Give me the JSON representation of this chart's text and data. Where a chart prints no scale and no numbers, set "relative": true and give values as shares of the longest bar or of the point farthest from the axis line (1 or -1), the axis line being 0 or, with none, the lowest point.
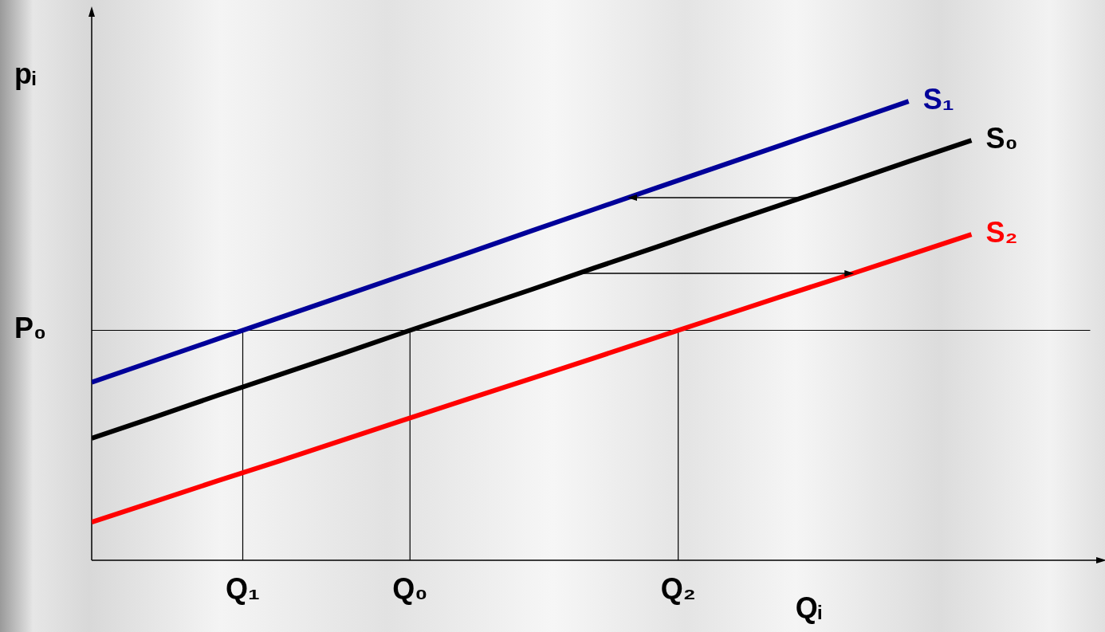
{
  "chart_data": {
    "type": "line",
    "relative": true,
    "xlabel": "Qᵢ",
    "ylabel": "pᵢ",
    "legend": false,
    "marker": "none",
    "line_style": "solid",
    "categories": [
      null,
      null,
      null,
      null,
      null,
      null,
      null,
      null,
      null,
      null,
      null,
      null,
      null,
      null,
      null
    ],
    "series": [
      {
        "name": "S₁",
        "color": "#000099",
        "values": [
          0.388,
          0.435,
          0.482,
          0.529,
          0.576,
          0.623,
          0.67,
          0.718,
          0.765,
          0.812,
          0.859,
          0.906,
          0.953,
          1,
          null
        ]
      },
      {
        "name": "S₀",
        "color": "#000000",
        "values": [
          0.266,
          0.312,
          0.359,
          0.405,
          0.451,
          0.498,
          0.544,
          0.59,
          0.637,
          0.683,
          0.73,
          0.776,
          0.822,
          0.869,
          0.915
        ]
      },
      {
        "name": "S₂",
        "color": "#ff0000",
        "values": [
          0.083,
          0.128,
          0.173,
          0.217,
          0.262,
          0.307,
          0.352,
          0.396,
          0.441,
          0.486,
          0.531,
          0.576,
          0.62,
          0.665,
          0.71
        ]
      }
    ],
    "ref_lines": [
      {
        "axis": "y",
        "value": 0.501,
        "label": "P₀",
        "color": "#000000"
      }
    ],
    "annotations": [
      "Q₁",
      "Q₀",
      "Q₂"
    ]
  }
}
